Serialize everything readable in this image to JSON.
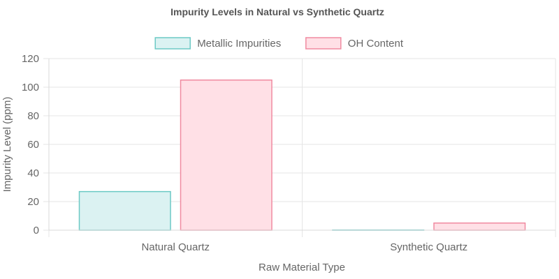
{
  "chart_data": {
    "type": "bar",
    "title": "Impurity Levels in Natural vs Synthetic Quartz",
    "xlabel": "Raw Material Type",
    "ylabel": "Impurity Level (ppm)",
    "categories": [
      "Natural Quartz",
      "Synthetic Quartz"
    ],
    "series": [
      {
        "name": "Metallic Impurities",
        "values": [
          27,
          0.1
        ],
        "fill": "#dbf2f2",
        "stroke": "#6cc9c5"
      },
      {
        "name": "OH Content",
        "values": [
          105,
          5
        ],
        "fill": "#ffe0e6",
        "stroke": "#f08aa0"
      }
    ],
    "ylim": [
      0,
      120
    ],
    "yticks": [
      0,
      20,
      40,
      60,
      80,
      100,
      120
    ],
    "grid": true,
    "legend": "top-center"
  }
}
